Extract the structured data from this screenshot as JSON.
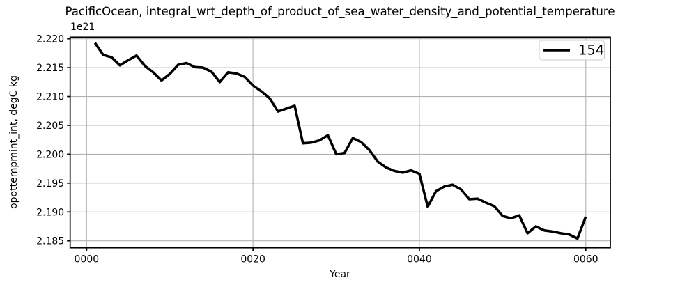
{
  "title": "PacificOcean, integral_wrt_depth_of_product_of_sea_water_density_and_potential_temperature",
  "chart_data": {
    "type": "line",
    "title": "PacificOcean, integral_wrt_depth_of_product_of_sea_water_density_and_potential_temperature",
    "xlabel": "Year",
    "ylabel": "opottempmint_int, degC kg",
    "offset_text": "1e21",
    "grid": true,
    "legend_position": "upper right",
    "xlim": [
      -1.98,
      62.95
    ],
    "ylim": [
      2.18379,
      2.22029
    ],
    "xticks": [
      0,
      20,
      40,
      60
    ],
    "xtick_labels": [
      "0000",
      "0020",
      "0040",
      "0060"
    ],
    "yticks": [
      2.185,
      2.19,
      2.195,
      2.2,
      2.205,
      2.21,
      2.215,
      2.22
    ],
    "ytick_labels": [
      "2.185",
      "2.190",
      "2.195",
      "2.200",
      "2.205",
      "2.210",
      "2.215",
      "2.220"
    ],
    "y_unit_multiplier": "1e21",
    "x": [
      1,
      2,
      3,
      4,
      5,
      6,
      7,
      8,
      9,
      10,
      11,
      12,
      13,
      14,
      15,
      16,
      17,
      18,
      19,
      20,
      21,
      22,
      23,
      24,
      25,
      26,
      27,
      28,
      29,
      30,
      31,
      32,
      33,
      34,
      35,
      36,
      37,
      38,
      39,
      40,
      41,
      42,
      43,
      44,
      45,
      46,
      47,
      48,
      49,
      50,
      51,
      52,
      53,
      54,
      55,
      56,
      57,
      58,
      59,
      60
    ],
    "series": [
      {
        "name": "154",
        "color": "#000000",
        "values": [
          2.2193,
          2.2172,
          2.2168,
          2.2154,
          2.2163,
          2.2171,
          2.2153,
          2.2142,
          2.2128,
          2.2139,
          2.2155,
          2.2158,
          2.2151,
          2.215,
          2.2143,
          2.2125,
          2.2142,
          2.214,
          2.2134,
          2.2119,
          2.2109,
          2.2097,
          2.2074,
          2.2079,
          2.2084,
          2.2019,
          2.202,
          2.2024,
          2.2033,
          2.2,
          2.2002,
          2.2028,
          2.2021,
          2.2007,
          2.1987,
          2.1977,
          2.1971,
          2.1968,
          2.1972,
          2.1966,
          2.1909,
          2.1936,
          2.1944,
          2.1947,
          2.1939,
          2.1922,
          2.1923,
          2.1916,
          2.191,
          2.1893,
          2.1889,
          2.1894,
          2.1863,
          2.1875,
          2.1868,
          2.1866,
          2.1863,
          2.1861,
          2.1854,
          2.1892
        ]
      }
    ],
    "legend": {
      "entries": [
        {
          "label": "154",
          "color": "#000000"
        }
      ]
    }
  },
  "colors": {
    "background": "#ffffff",
    "line": "#000000",
    "grid": "#b2b2b2",
    "spine": "#000000",
    "legend_border": "#cccccc",
    "legend_fill": "#ffffff",
    "text": "#000000"
  }
}
